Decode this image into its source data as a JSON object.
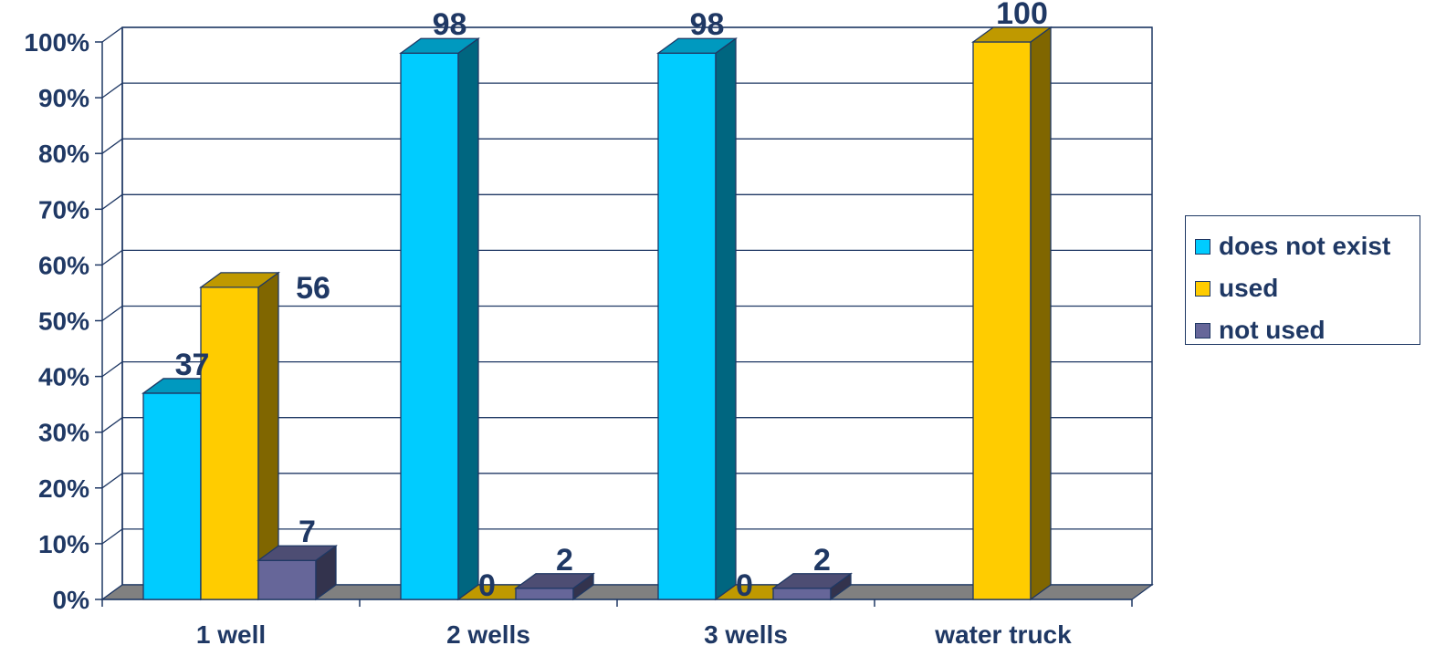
{
  "chart_data": {
    "type": "bar",
    "categories": [
      "1 well",
      "2 wells",
      "3 wells",
      "water truck"
    ],
    "series": [
      {
        "name": "does not exist",
        "values": [
          37,
          98,
          98,
          null
        ],
        "color": "#00CCFF"
      },
      {
        "name": "used",
        "values": [
          56,
          0,
          0,
          100
        ],
        "color": "#FFCC00"
      },
      {
        "name": "not used",
        "values": [
          7,
          2,
          2,
          null
        ],
        "color": "#666699"
      }
    ],
    "value_labels": [
      [
        "37",
        "98",
        "98",
        ""
      ],
      [
        "56",
        "0",
        "0",
        "100"
      ],
      [
        "7",
        "2",
        "2",
        ""
      ]
    ],
    "y_ticks": [
      "0%",
      "10%",
      "20%",
      "30%",
      "40%",
      "50%",
      "60%",
      "70%",
      "80%",
      "90%",
      "100%"
    ],
    "ylim": [
      0,
      100
    ],
    "grid": true,
    "style": "3d-clustered-column",
    "legend_position": "right",
    "title": "",
    "xlabel": "",
    "ylabel": ""
  }
}
